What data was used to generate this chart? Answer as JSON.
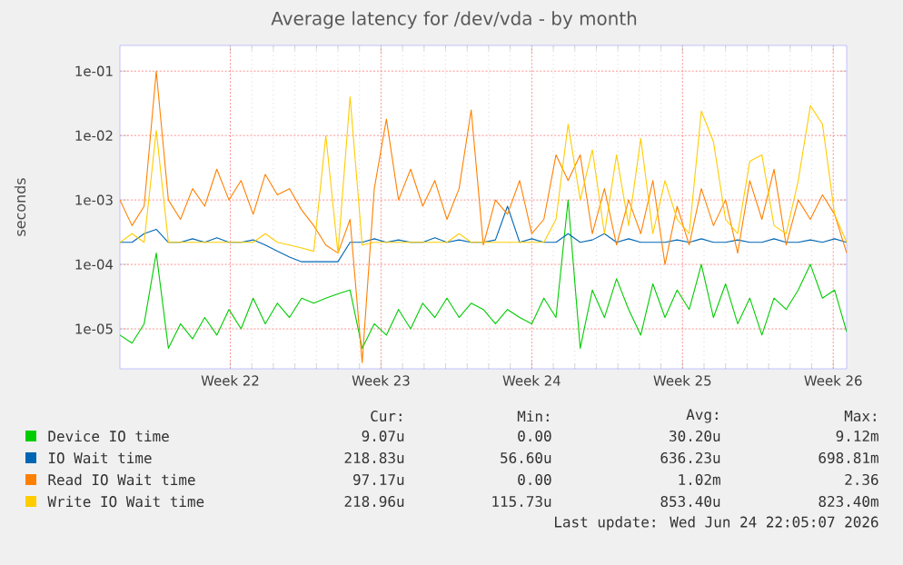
{
  "chart_data": {
    "type": "line",
    "title": "Average latency for /dev/vda - by month",
    "ylabel": "seconds",
    "log": "y",
    "grid": true,
    "legend": "bottom",
    "xlim": [
      "2026-05-22T05:00",
      "2026-06-24T23:00"
    ],
    "xticks": [
      {
        "value": "2026-05-27T08:00",
        "label": "Week 22"
      },
      {
        "value": "2026-06-03T08:00",
        "label": "Week 23"
      },
      {
        "value": "2026-06-10T08:00",
        "label": "Week 24"
      },
      {
        "value": "2026-06-17T08:00",
        "label": "Week 25"
      },
      {
        "value": "2026-06-24T08:00",
        "label": "Week 26"
      }
    ],
    "ylim": [
      2.4e-06,
      0.25
    ],
    "yticks": [
      {
        "value": 1e-05,
        "label": "1e-05"
      },
      {
        "value": 0.0001,
        "label": "1e-04"
      },
      {
        "value": 0.001,
        "label": "1e-03"
      },
      {
        "value": 0.01,
        "label": "1e-02"
      },
      {
        "value": 0.1,
        "label": "1e-01"
      }
    ],
    "x": [
      "2026-05-22T05:00",
      "2026-05-22T18:30",
      "2026-05-23T08:00",
      "2026-05-23T21:30",
      "2026-05-24T11:00",
      "2026-05-25T00:30",
      "2026-05-25T14:00",
      "2026-05-26T03:30",
      "2026-05-26T17:00",
      "2026-05-27T06:30",
      "2026-05-27T20:00",
      "2026-05-28T09:30",
      "2026-05-28T23:00",
      "2026-05-29T12:30",
      "2026-05-30T02:00",
      "2026-05-30T15:30",
      "2026-05-31T05:00",
      "2026-05-31T18:30",
      "2026-06-01T08:00",
      "2026-06-01T21:30",
      "2026-06-02T11:00",
      "2026-06-03T00:30",
      "2026-06-03T14:00",
      "2026-06-04T03:30",
      "2026-06-04T17:00",
      "2026-06-05T06:30",
      "2026-06-05T20:00",
      "2026-06-06T09:30",
      "2026-06-06T23:00",
      "2026-06-07T12:30",
      "2026-06-08T02:00",
      "2026-06-08T15:30",
      "2026-06-09T05:00",
      "2026-06-09T18:30",
      "2026-06-10T08:00",
      "2026-06-10T21:30",
      "2026-06-11T11:00",
      "2026-06-12T00:30",
      "2026-06-12T14:00",
      "2026-06-13T03:30",
      "2026-06-13T17:00",
      "2026-06-14T06:30",
      "2026-06-14T20:00",
      "2026-06-15T09:30",
      "2026-06-15T23:00",
      "2026-06-16T12:30",
      "2026-06-17T02:00",
      "2026-06-17T15:30",
      "2026-06-18T05:00",
      "2026-06-18T18:30",
      "2026-06-19T08:00",
      "2026-06-19T21:30",
      "2026-06-20T11:00",
      "2026-06-21T00:30",
      "2026-06-21T14:00",
      "2026-06-22T03:30",
      "2026-06-22T17:00",
      "2026-06-23T06:30",
      "2026-06-23T20:00",
      "2026-06-24T09:30",
      "2026-06-24T23:00"
    ],
    "series": [
      {
        "name": "Device IO time",
        "color": "#00cc00",
        "values": [
          8e-06,
          6e-06,
          1.2e-05,
          0.00015,
          5e-06,
          1.2e-05,
          7e-06,
          1.5e-05,
          8e-06,
          2e-05,
          1e-05,
          3e-05,
          1.2e-05,
          2.5e-05,
          1.5e-05,
          3e-05,
          2.5e-05,
          3e-05,
          3.5e-05,
          4e-05,
          5e-06,
          1.2e-05,
          8e-06,
          2e-05,
          1e-05,
          2.5e-05,
          1.5e-05,
          3e-05,
          1.5e-05,
          2.5e-05,
          2e-05,
          1.2e-05,
          2e-05,
          1.5e-05,
          1.2e-05,
          3e-05,
          1.5e-05,
          0.001,
          5e-06,
          4e-05,
          1.5e-05,
          6e-05,
          2e-05,
          8e-06,
          5e-05,
          1.5e-05,
          4e-05,
          2e-05,
          0.0001,
          1.5e-05,
          5e-05,
          1.2e-05,
          3e-05,
          8e-06,
          3e-05,
          2e-05,
          4e-05,
          0.0001,
          3e-05,
          4e-05,
          9e-06
        ]
      },
      {
        "name": "IO Wait time",
        "color": "#0066b3",
        "values": [
          0.00022,
          0.00022,
          0.0003,
          0.00035,
          0.00022,
          0.00022,
          0.00025,
          0.00022,
          0.00026,
          0.00022,
          0.00022,
          0.00024,
          0.0002,
          0.00016,
          0.00013,
          0.00011,
          0.00011,
          0.00011,
          0.00011,
          0.00022,
          0.00022,
          0.00025,
          0.00022,
          0.00024,
          0.00022,
          0.00022,
          0.00026,
          0.00022,
          0.00024,
          0.00022,
          0.00022,
          0.00024,
          0.0008,
          0.00022,
          0.00025,
          0.00022,
          0.00022,
          0.0003,
          0.00022,
          0.00024,
          0.0003,
          0.00022,
          0.00025,
          0.00022,
          0.00022,
          0.00022,
          0.00024,
          0.00022,
          0.00025,
          0.00022,
          0.00022,
          0.00024,
          0.00022,
          0.00022,
          0.00025,
          0.00022,
          0.00022,
          0.00024,
          0.00022,
          0.00025,
          0.00022
        ]
      },
      {
        "name": "Read IO Wait time",
        "color": "#ff8000",
        "values": [
          0.001,
          0.0004,
          0.0008,
          0.1,
          0.001,
          0.0005,
          0.0015,
          0.0008,
          0.003,
          0.001,
          0.002,
          0.0006,
          0.0025,
          0.0012,
          0.0015,
          0.0007,
          0.0004,
          0.0002,
          0.00015,
          0.0005,
          3e-06,
          0.0015,
          0.018,
          0.001,
          0.003,
          0.0008,
          0.002,
          0.0005,
          0.0015,
          0.025,
          0.0002,
          0.001,
          0.0006,
          0.002,
          0.0003,
          0.0005,
          0.005,
          0.002,
          0.005,
          0.0003,
          0.0015,
          0.0002,
          0.001,
          0.0003,
          0.002,
          0.0001,
          0.0008,
          0.0002,
          0.0015,
          0.0004,
          0.001,
          0.00015,
          0.002,
          0.0005,
          0.003,
          0.0002,
          0.001,
          0.0005,
          0.0012,
          0.0006,
          0.00015
        ]
      },
      {
        "name": "Write IO Wait time",
        "color": "#ffcc00",
        "values": [
          0.00022,
          0.0003,
          0.00022,
          0.012,
          0.00022,
          0.00022,
          0.00022,
          0.00022,
          0.00022,
          0.00022,
          0.00022,
          0.00022,
          0.0003,
          0.00022,
          0.0002,
          0.00018,
          0.00016,
          0.01,
          0.00015,
          0.04,
          0.0002,
          0.00022,
          0.00022,
          0.00022,
          0.00022,
          0.00022,
          0.00022,
          0.00022,
          0.0003,
          0.00022,
          0.00022,
          0.00022,
          0.00022,
          0.00022,
          0.00022,
          0.00022,
          0.0005,
          0.015,
          0.001,
          0.006,
          0.0003,
          0.005,
          0.0004,
          0.009,
          0.0003,
          0.002,
          0.0005,
          0.0003,
          0.024,
          0.008,
          0.0005,
          0.0003,
          0.004,
          0.005,
          0.0004,
          0.0003,
          0.002,
          0.029,
          0.015,
          0.0006,
          0.00022
        ]
      }
    ],
    "annotations": [
      "Cur:",
      "Min:",
      "Avg:",
      "Max:",
      "9.07u",
      "0.00",
      "30.20u",
      "9.12m",
      "218.83u",
      "56.60u",
      "636.23u",
      "698.81m",
      "97.17u",
      "0.00",
      "1.02m",
      "2.36",
      "218.96u",
      "115.73u",
      "853.40u",
      "823.40m",
      "Last update: Wed Jun 24 22:05:07 2026"
    ]
  }
}
